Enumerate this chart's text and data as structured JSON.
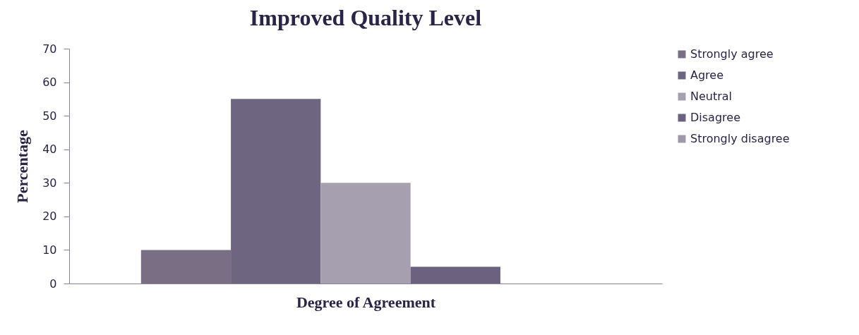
{
  "chart_data": {
    "type": "bar",
    "title": "Improved Quality Level",
    "xlabel": "Degree of Agreement",
    "ylabel": "Percentage",
    "categories": [
      null
    ],
    "series": [
      {
        "name": "Strongly agree",
        "color": "#7a6e85",
        "values": [
          10
        ]
      },
      {
        "name": "Agree",
        "color": "#6e6680",
        "values": [
          55
        ]
      },
      {
        "name": "Neutral",
        "color": "#a59fb0",
        "values": [
          30
        ]
      },
      {
        "name": "Disagree",
        "color": "#6c6280",
        "values": [
          5
        ]
      },
      {
        "name": "Strongly disagree",
        "color": "#9e98a8",
        "values": [
          0
        ]
      }
    ],
    "ylim": [
      0,
      70
    ],
    "yticks": [
      0,
      10,
      20,
      30,
      40,
      50,
      60,
      70
    ],
    "grid": false,
    "legend": "right"
  }
}
